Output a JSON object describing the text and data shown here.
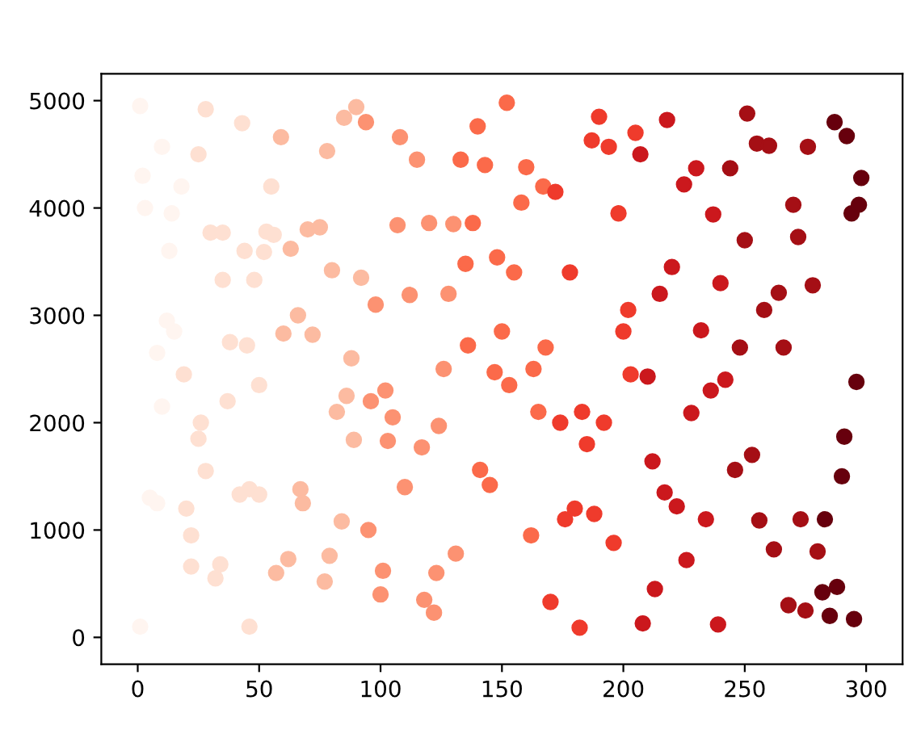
{
  "chart_data": {
    "type": "scatter",
    "marker": "circle",
    "grid": false,
    "legend": false,
    "xlim": [
      -15,
      315
    ],
    "ylim": [
      -250,
      5250
    ],
    "xticks": [
      0,
      50,
      100,
      150,
      200,
      250,
      300
    ],
    "yticks": [
      0,
      1000,
      2000,
      3000,
      4000,
      5000
    ],
    "series": [
      {
        "color": "#fff5f0",
        "x": [
          1,
          2,
          3,
          5,
          1,
          8,
          10,
          8,
          10,
          12,
          13,
          14,
          15,
          18
        ],
        "values": [
          4950,
          4300,
          4000,
          1300,
          100,
          1250,
          4570,
          2650,
          2150,
          2950,
          3600,
          3950,
          2850,
          4200
        ]
      },
      {
        "color": "#fee0d2",
        "x": [
          19,
          20,
          22,
          22,
          25,
          25,
          26,
          28,
          28,
          30,
          32,
          34,
          35,
          35,
          37,
          38,
          42,
          43,
          44,
          45,
          46,
          46,
          48,
          50,
          50,
          52,
          53,
          55,
          56
        ],
        "values": [
          2450,
          1200,
          660,
          950,
          1850,
          4500,
          2000,
          4920,
          1550,
          3770,
          550,
          680,
          3330,
          3770,
          2200,
          2750,
          1330,
          4790,
          3600,
          2720,
          100,
          1380,
          3330,
          1330,
          2350,
          3590,
          3780,
          4200,
          3750
        ]
      },
      {
        "color": "#fcbba1",
        "x": [
          57,
          59,
          60,
          62,
          63,
          66,
          67,
          68,
          70,
          72,
          75,
          77,
          78,
          79,
          80,
          82,
          84,
          85,
          86,
          88,
          89,
          90,
          92
        ],
        "values": [
          600,
          4660,
          2830,
          730,
          3620,
          3000,
          1380,
          1250,
          3800,
          2820,
          3820,
          520,
          4530,
          760,
          3420,
          2100,
          1080,
          4840,
          2250,
          2600,
          1840,
          4940,
          3350
        ]
      },
      {
        "color": "#fc9272",
        "x": [
          94,
          95,
          96,
          98,
          100,
          101,
          102,
          103,
          105,
          107,
          108,
          110,
          112,
          115,
          117,
          118,
          120,
          122,
          123,
          124,
          126,
          128,
          130,
          131
        ],
        "values": [
          4800,
          1000,
          2200,
          3100,
          400,
          620,
          2300,
          1830,
          2050,
          3840,
          4660,
          1400,
          3190,
          4450,
          1770,
          350,
          3860,
          230,
          600,
          1970,
          2500,
          3200,
          3850,
          780
        ]
      },
      {
        "color": "#fb6a4a",
        "x": [
          133,
          135,
          136,
          138,
          140,
          141,
          143,
          145,
          147,
          148,
          150,
          152,
          153,
          155,
          158,
          160,
          162,
          163,
          165,
          167,
          168
        ],
        "values": [
          4450,
          3480,
          2720,
          3860,
          4760,
          1560,
          4400,
          1420,
          2470,
          3540,
          2850,
          4980,
          2350,
          3400,
          4050,
          4380,
          950,
          2500,
          2100,
          4200,
          2700
        ]
      },
      {
        "color": "#ef3b2c",
        "x": [
          170,
          172,
          174,
          176,
          178,
          180,
          182,
          183,
          185,
          187,
          188,
          190,
          192,
          194,
          196,
          198,
          200,
          202,
          203,
          205
        ],
        "values": [
          330,
          4150,
          2000,
          1100,
          3400,
          1200,
          90,
          2100,
          1800,
          4630,
          1150,
          4850,
          2000,
          4570,
          880,
          3950,
          2850,
          3050,
          2450,
          4700
        ]
      },
      {
        "color": "#cb181d",
        "x": [
          207,
          208,
          210,
          212,
          213,
          215,
          217,
          218,
          220,
          222,
          225,
          226,
          228,
          230,
          232,
          234,
          236,
          237,
          239,
          240,
          242
        ],
        "values": [
          4500,
          130,
          2430,
          1640,
          450,
          3200,
          1350,
          4820,
          3450,
          1220,
          4220,
          720,
          2090,
          4370,
          2860,
          1100,
          2300,
          3940,
          120,
          3300,
          2400
        ]
      },
      {
        "color": "#a50f15",
        "x": [
          244,
          246,
          248,
          250,
          251,
          253,
          255,
          256,
          258,
          260,
          262,
          264,
          266,
          268,
          270,
          272,
          273,
          275,
          276,
          278,
          280
        ],
        "values": [
          4370,
          1560,
          2700,
          3700,
          4880,
          1700,
          4600,
          1090,
          3050,
          4580,
          820,
          3210,
          2700,
          300,
          4030,
          3730,
          1100,
          250,
          4570,
          3280,
          800
        ]
      },
      {
        "color": "#67000d",
        "x": [
          282,
          283,
          285,
          287,
          288,
          290,
          291,
          292,
          294,
          295,
          296,
          297,
          298
        ],
        "values": [
          420,
          1100,
          200,
          4800,
          470,
          1500,
          1870,
          4670,
          3950,
          170,
          2380,
          4030,
          4280
        ]
      }
    ]
  }
}
